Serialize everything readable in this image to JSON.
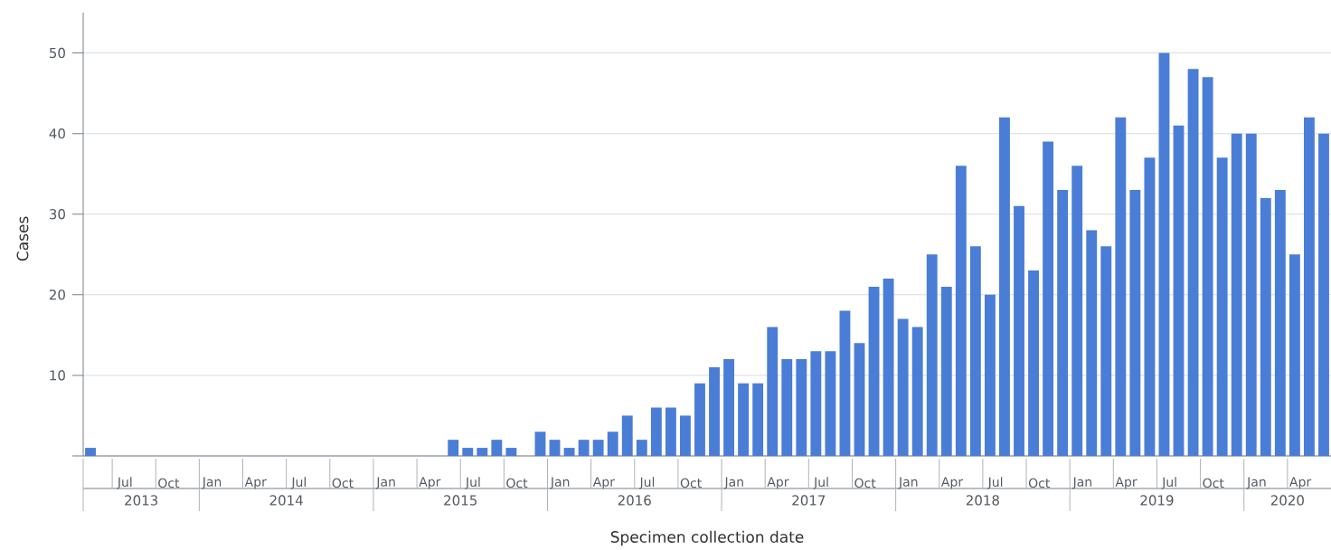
{
  "chart_data": {
    "type": "bar",
    "xlabel": "Specimen collection date",
    "ylabel": "Cases",
    "color": "#4a7dd6",
    "x": [
      "2013-05",
      "2013-06",
      "2013-07",
      "2013-08",
      "2013-09",
      "2013-10",
      "2013-11",
      "2013-12",
      "2014-01",
      "2014-02",
      "2014-03",
      "2014-04",
      "2014-05",
      "2014-06",
      "2014-07",
      "2014-08",
      "2014-09",
      "2014-10",
      "2014-11",
      "2014-12",
      "2015-01",
      "2015-02",
      "2015-03",
      "2015-04",
      "2015-05",
      "2015-06",
      "2015-07",
      "2015-08",
      "2015-09",
      "2015-10",
      "2015-11",
      "2015-12",
      "2016-01",
      "2016-02",
      "2016-03",
      "2016-04",
      "2016-05",
      "2016-06",
      "2016-07",
      "2016-08",
      "2016-09",
      "2016-10",
      "2016-11",
      "2016-12",
      "2017-01",
      "2017-02",
      "2017-03",
      "2017-04",
      "2017-05",
      "2017-06",
      "2017-07",
      "2017-08",
      "2017-09",
      "2017-10",
      "2017-11",
      "2017-12",
      "2018-01",
      "2018-02",
      "2018-03",
      "2018-04",
      "2018-05",
      "2018-06",
      "2018-07",
      "2018-08",
      "2018-09",
      "2018-10",
      "2018-11",
      "2018-12",
      "2019-01",
      "2019-02",
      "2019-03",
      "2019-04",
      "2019-05",
      "2019-06",
      "2019-07",
      "2019-08",
      "2019-09",
      "2019-10",
      "2019-11",
      "2019-12",
      "2020-01",
      "2020-02",
      "2020-03",
      "2020-04",
      "2020-05",
      "2020-06"
    ],
    "values": [
      1,
      0,
      0,
      0,
      0,
      0,
      0,
      0,
      0,
      0,
      0,
      0,
      0,
      0,
      0,
      0,
      0,
      0,
      0,
      0,
      0,
      0,
      0,
      0,
      0,
      2,
      1,
      1,
      2,
      1,
      0,
      3,
      2,
      1,
      2,
      2,
      3,
      5,
      2,
      6,
      6,
      5,
      9,
      11,
      12,
      9,
      9,
      16,
      12,
      12,
      13,
      13,
      18,
      14,
      21,
      22,
      17,
      16,
      25,
      21,
      36,
      26,
      20,
      42,
      31,
      23,
      39,
      33,
      36,
      28,
      26,
      42,
      33,
      37,
      50,
      41,
      48,
      47,
      37,
      40,
      40,
      32,
      33,
      25,
      42,
      40
    ],
    "xlim": [
      "2013-05",
      "2020-07"
    ],
    "xticks": [
      {
        "value": "2013-07-28",
        "label": "Jul"
      },
      {
        "value": "2013-10-28",
        "label": "Oct"
      },
      {
        "value": "2014-01-28",
        "label": "Jan"
      },
      {
        "value": "2014-04-28",
        "label": "Apr"
      },
      {
        "value": "2014-07-28",
        "label": "Jul"
      },
      {
        "value": "2014-10-28",
        "label": "Oct"
      },
      {
        "value": "2015-01-28",
        "label": "Jan"
      },
      {
        "value": "2015-04-28",
        "label": "Apr"
      },
      {
        "value": "2015-07-28",
        "label": "Jul"
      },
      {
        "value": "2015-10-28",
        "label": "Oct"
      },
      {
        "value": "2016-01-28",
        "label": "Jan"
      },
      {
        "value": "2016-04-28",
        "label": "Apr"
      },
      {
        "value": "2016-07-28",
        "label": "Jul"
      },
      {
        "value": "2016-10-28",
        "label": "Oct"
      },
      {
        "value": "2017-01-28",
        "label": "Jan"
      },
      {
        "value": "2017-04-28",
        "label": "Apr"
      },
      {
        "value": "2017-07-28",
        "label": "Jul"
      },
      {
        "value": "2017-10-28",
        "label": "Oct"
      },
      {
        "value": "2018-01-28",
        "label": "Jan"
      },
      {
        "value": "2018-04-28",
        "label": "Apr"
      },
      {
        "value": "2018-07-28",
        "label": "Jul"
      },
      {
        "value": "2018-10-28",
        "label": "Oct"
      },
      {
        "value": "2019-01-28",
        "label": "Jan"
      },
      {
        "value": "2019-04-28",
        "label": "Apr"
      },
      {
        "value": "2019-07-28",
        "label": "Jul"
      },
      {
        "value": "2019-10-28",
        "label": "Oct"
      },
      {
        "value": "2020-01-28",
        "label": "Jan"
      },
      {
        "value": "2020-04-28",
        "label": "Apr"
      }
    ],
    "ylim": [
      0,
      55
    ],
    "yticks": [
      {
        "value": 0,
        "label": null
      },
      10,
      20,
      30,
      40,
      50
    ],
    "grid": "y",
    "annotations": [
      "2013",
      "2014",
      "2015",
      "2016",
      "2017",
      "2018",
      "2019",
      "2020"
    ]
  }
}
